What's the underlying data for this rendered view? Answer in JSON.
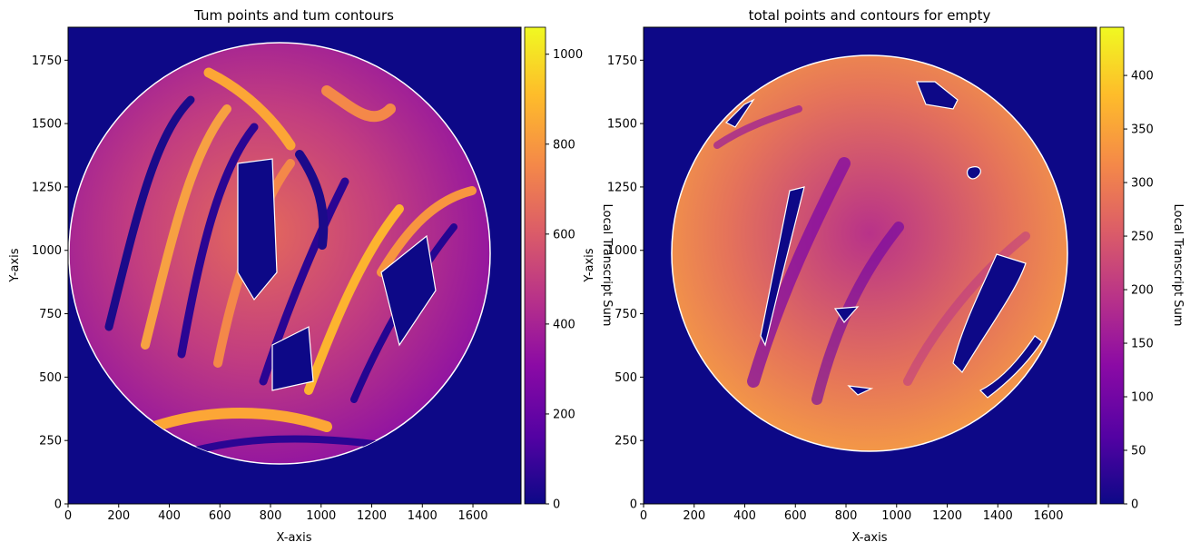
{
  "colors": {
    "background": "#0d0887",
    "contour": "#ffffff",
    "colormap": [
      "#0d0887",
      "#5302a3",
      "#8b0aa5",
      "#b83289",
      "#db5c68",
      "#f48849",
      "#febd2a",
      "#f0f921"
    ]
  },
  "chart_data": [
    {
      "type": "heatmap",
      "title": "Tum points and tum contours",
      "xlabel": "X-axis",
      "ylabel": "Y-axis",
      "xlim": [
        0,
        1790
      ],
      "ylim": [
        0,
        1880
      ],
      "xticks": [
        0,
        200,
        400,
        600,
        800,
        1000,
        1200,
        1400,
        1600
      ],
      "yticks": [
        0,
        250,
        500,
        750,
        1000,
        1250,
        1500,
        1750
      ],
      "grid": false,
      "colorbar": {
        "label": "Local Transcript Sum",
        "range": [
          0,
          1060
        ],
        "ticks": [
          0,
          200,
          400,
          600,
          800,
          1000
        ]
      },
      "tissue_region": {
        "shape": "circle",
        "center": [
          850,
          1015
        ],
        "radius": 850
      },
      "contour_color": "white"
    },
    {
      "type": "heatmap",
      "title": "total points and contours for empty",
      "xlabel": "X-axis",
      "ylabel": "Y-axis",
      "xlim": [
        0,
        1790
      ],
      "ylim": [
        0,
        1880
      ],
      "xticks": [
        0,
        200,
        400,
        600,
        800,
        1000,
        1200,
        1400,
        1600
      ],
      "yticks": [
        0,
        250,
        500,
        750,
        1000,
        1250,
        1500,
        1750
      ],
      "grid": false,
      "colorbar": {
        "label": "Local Transcript Sum",
        "range": [
          0,
          445
        ],
        "ticks": [
          0,
          50,
          100,
          150,
          200,
          250,
          300,
          350,
          400
        ]
      },
      "tissue_region": {
        "shape": "circle",
        "center": [
          930,
          1015
        ],
        "radius": 800
      },
      "contour_color": "white"
    }
  ]
}
